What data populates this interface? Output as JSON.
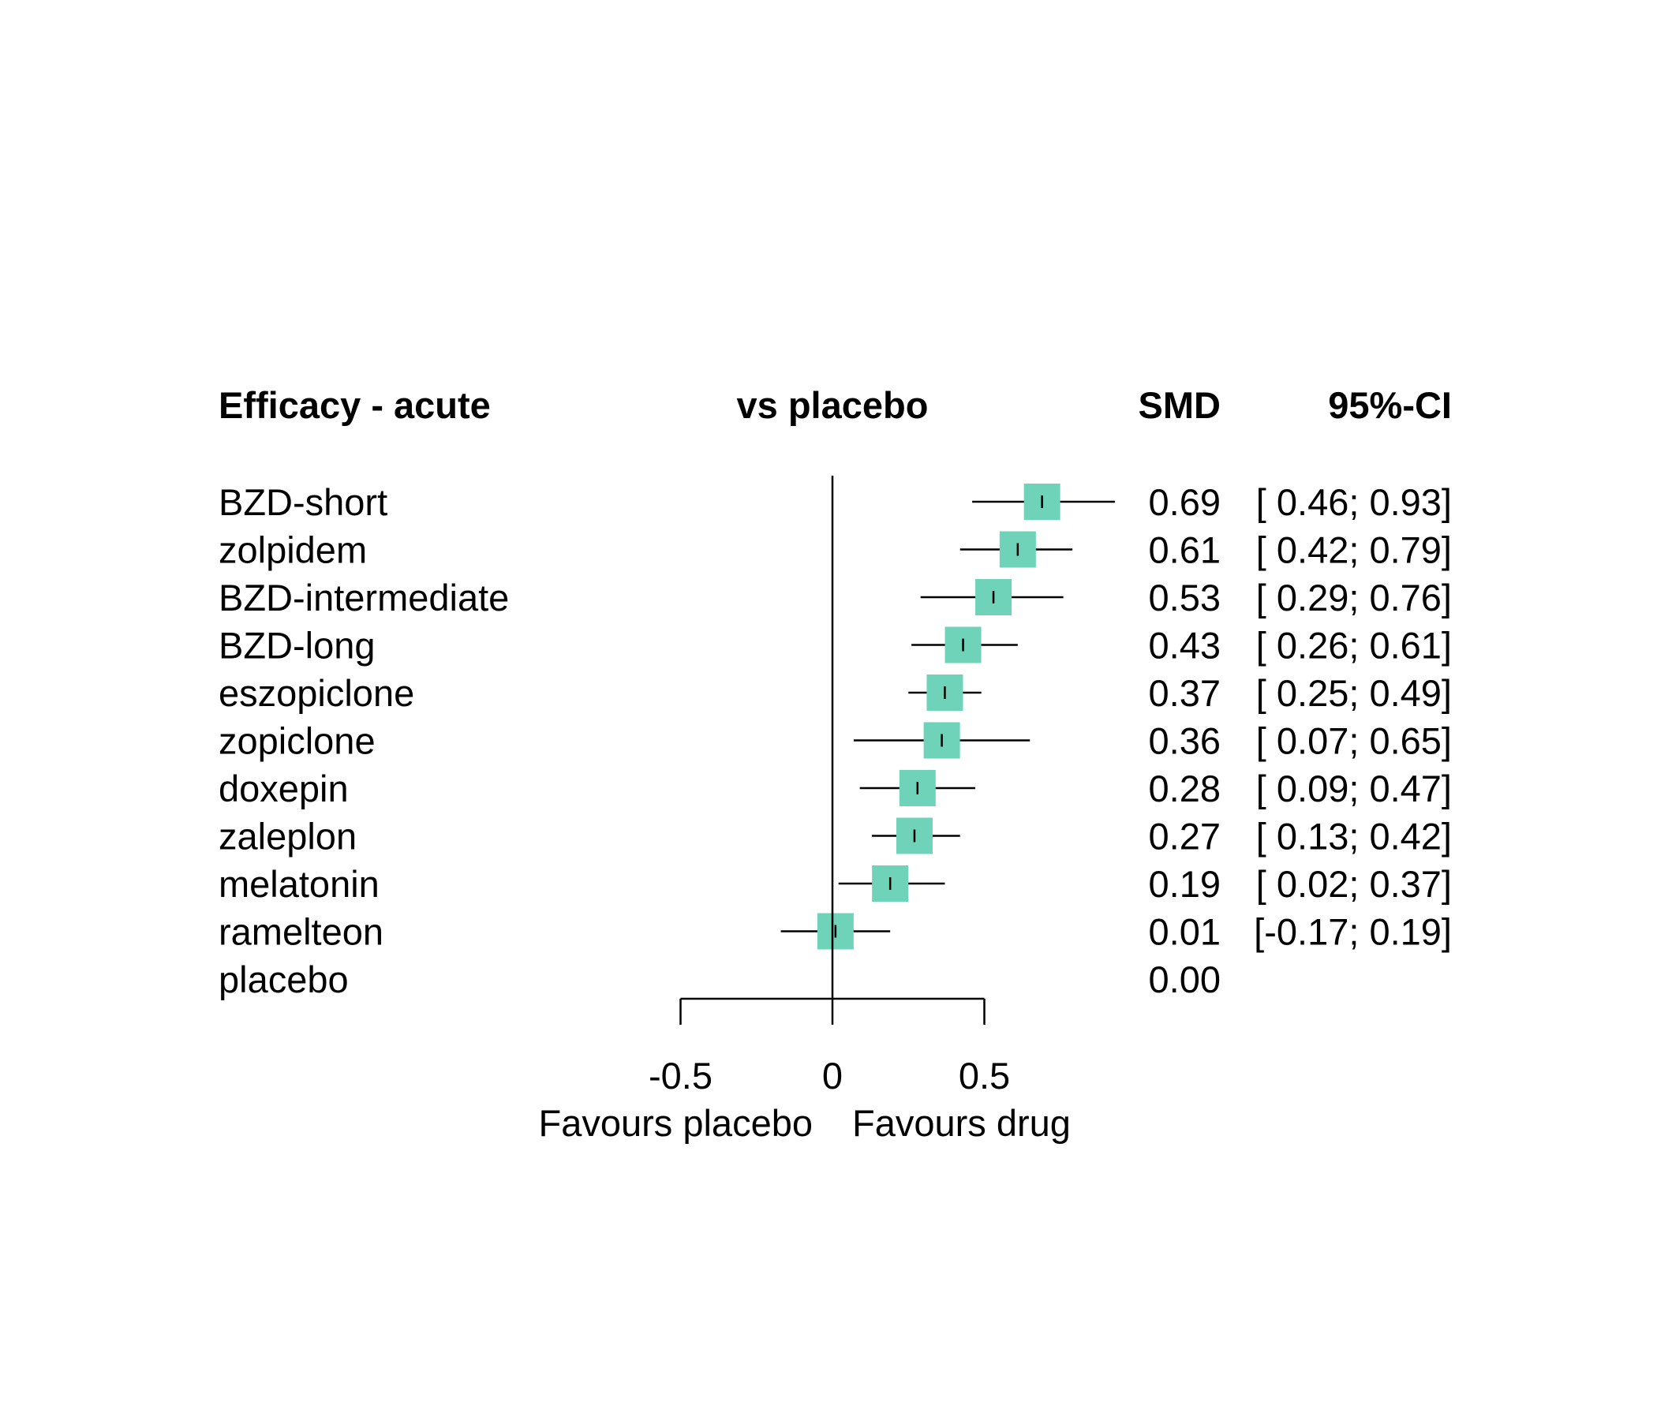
{
  "header": {
    "left": "Efficacy - acute",
    "center": "vs placebo",
    "smd": "SMD",
    "ci": "95%-CI"
  },
  "footer": {
    "favours_left": "Favours placebo",
    "favours_right": "Favours drug"
  },
  "colors": {
    "box": "#6fd3b9",
    "line": "#000000"
  },
  "chart_data": {
    "type": "forest",
    "xlim": [
      -0.5,
      0.5
    ],
    "xticks": [
      -0.5,
      0,
      0.5
    ],
    "xtick_labels": [
      "-0.5",
      "0",
      "0.5"
    ],
    "reference_line": 0,
    "rows": [
      {
        "label": "BZD-short",
        "smd": 0.69,
        "lo": 0.46,
        "hi": 0.93,
        "smd_text": "0.69",
        "ci_text": "[ 0.46; 0.93]"
      },
      {
        "label": "zolpidem",
        "smd": 0.61,
        "lo": 0.42,
        "hi": 0.79,
        "smd_text": "0.61",
        "ci_text": "[ 0.42; 0.79]"
      },
      {
        "label": "BZD-intermediate",
        "smd": 0.53,
        "lo": 0.29,
        "hi": 0.76,
        "smd_text": "0.53",
        "ci_text": "[ 0.29; 0.76]"
      },
      {
        "label": "BZD-long",
        "smd": 0.43,
        "lo": 0.26,
        "hi": 0.61,
        "smd_text": "0.43",
        "ci_text": "[ 0.26; 0.61]"
      },
      {
        "label": "eszopiclone",
        "smd": 0.37,
        "lo": 0.25,
        "hi": 0.49,
        "smd_text": "0.37",
        "ci_text": "[ 0.25; 0.49]"
      },
      {
        "label": "zopiclone",
        "smd": 0.36,
        "lo": 0.07,
        "hi": 0.65,
        "smd_text": "0.36",
        "ci_text": "[ 0.07; 0.65]"
      },
      {
        "label": "doxepin",
        "smd": 0.28,
        "lo": 0.09,
        "hi": 0.47,
        "smd_text": "0.28",
        "ci_text": "[ 0.09; 0.47]"
      },
      {
        "label": "zaleplon",
        "smd": 0.27,
        "lo": 0.13,
        "hi": 0.42,
        "smd_text": "0.27",
        "ci_text": "[ 0.13; 0.42]"
      },
      {
        "label": "melatonin",
        "smd": 0.19,
        "lo": 0.02,
        "hi": 0.37,
        "smd_text": "0.19",
        "ci_text": "[ 0.02; 0.37]"
      },
      {
        "label": "ramelteon",
        "smd": 0.01,
        "lo": -0.17,
        "hi": 0.19,
        "smd_text": "0.01",
        "ci_text": "[-0.17; 0.19]"
      },
      {
        "label": "placebo",
        "smd": 0,
        "lo": null,
        "hi": null,
        "smd_text": "0.00",
        "ci_text": ""
      }
    ]
  }
}
